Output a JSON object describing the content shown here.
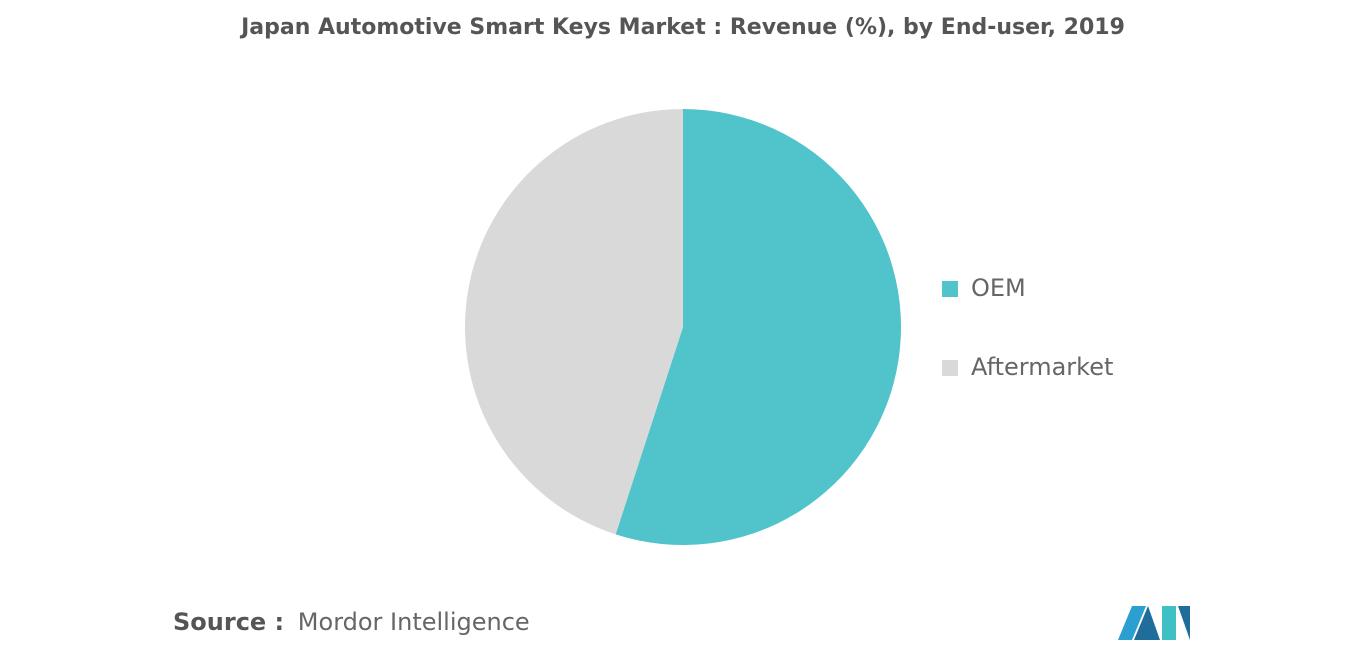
{
  "chart_data": {
    "type": "pie",
    "title": "Japan Automotive Smart Keys Market : Revenue (%), by End-user, 2019",
    "categories": [
      "OEM",
      "Aftermarket"
    ],
    "values": [
      55,
      45
    ],
    "colors": [
      "#50c4ca",
      "#d9d9d9"
    ],
    "legend": "right",
    "source_label": "Source :",
    "source": "Mordor Intelligence"
  }
}
